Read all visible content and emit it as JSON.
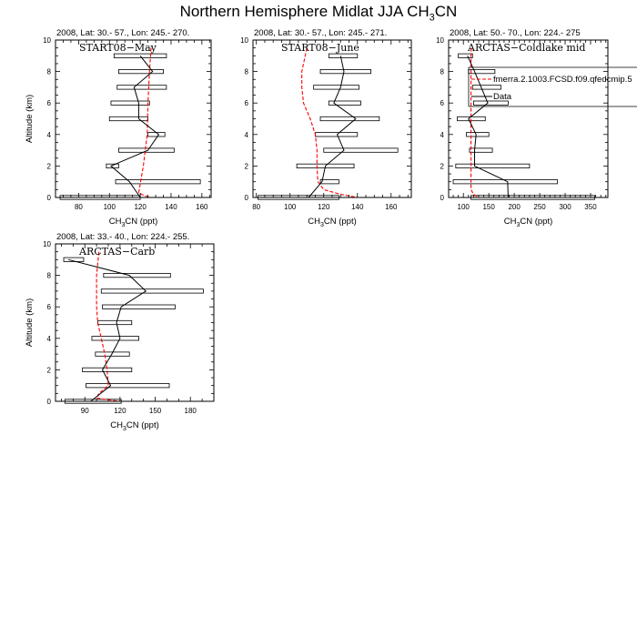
{
  "title": {
    "main": "Northern Hemisphere Midlat JJA CH",
    "sub": "3",
    "tail": "CN"
  },
  "colors": {
    "data": "#000000",
    "model": "#ff0000",
    "box": "#000000"
  },
  "legend": {
    "model_label": "fmerra.2.1003.FCSD.f09.qfedcmip.5",
    "data_label": "Data"
  },
  "chart_data": [
    {
      "type": "line",
      "title": "START08−May",
      "subtitle": "2008, Lat:  30.- 57., Lon: 245.- 270.",
      "xlabel": {
        "a": "CH",
        "sub": "3",
        "b": "CN (ppt)"
      },
      "ylabel": "Altitude (km)",
      "xlim": [
        65,
        166
      ],
      "ylim": [
        0,
        10
      ],
      "xticks": [
        80,
        100,
        120,
        140,
        160
      ],
      "xminor": 5,
      "yticks": [
        0,
        2,
        4,
        6,
        8,
        10
      ],
      "boxes": [
        [
          9,
          103,
          137
        ],
        [
          8,
          106,
          135
        ],
        [
          7,
          105,
          137
        ],
        [
          6,
          101,
          126
        ],
        [
          5,
          100,
          125
        ],
        [
          4,
          125,
          136
        ],
        [
          3,
          106,
          142
        ],
        [
          2,
          98,
          106
        ],
        [
          1,
          104,
          159
        ],
        [
          0,
          68,
          120
        ]
      ],
      "data": [
        [
          9,
          120
        ],
        [
          8,
          128
        ],
        [
          7,
          116
        ],
        [
          6,
          119
        ],
        [
          5,
          119
        ],
        [
          4,
          132
        ],
        [
          3,
          125
        ],
        [
          2,
          101
        ],
        [
          1,
          113
        ],
        [
          0,
          120
        ]
      ],
      "model": [
        [
          9.5,
          127
        ],
        [
          8,
          126
        ],
        [
          6,
          125
        ],
        [
          4,
          124.5
        ],
        [
          2,
          122
        ],
        [
          0.3,
          119
        ],
        [
          0.1,
          123
        ],
        [
          0,
          127
        ]
      ]
    },
    {
      "type": "line",
      "title": "START08−June",
      "subtitle": "2008, Lat:  30.- 57., Lon: 245.- 271.",
      "xlabel": {
        "a": "CH",
        "sub": "3",
        "b": "CN (ppt)"
      },
      "ylabel": "",
      "xlim": [
        78,
        172
      ],
      "ylim": [
        0,
        10
      ],
      "xticks": [
        80,
        100,
        120,
        140,
        160
      ],
      "xminor": 5,
      "yticks": [
        0,
        2,
        4,
        6,
        8,
        10
      ],
      "boxes": [
        [
          9,
          123,
          140
        ],
        [
          8,
          118,
          148
        ],
        [
          7,
          114,
          141
        ],
        [
          6,
          123,
          142
        ],
        [
          5,
          118,
          153
        ],
        [
          4,
          115,
          140
        ],
        [
          3,
          120,
          164
        ],
        [
          2,
          104,
          138
        ],
        [
          1,
          118,
          129
        ],
        [
          0,
          81,
          129
        ]
      ],
      "data": [
        [
          9,
          130
        ],
        [
          8,
          132
        ],
        [
          7,
          130
        ],
        [
          6,
          126
        ],
        [
          5,
          139
        ],
        [
          4,
          128
        ],
        [
          3,
          132
        ],
        [
          2,
          121
        ],
        [
          1,
          119
        ],
        [
          0,
          111
        ]
      ],
      "model": [
        [
          9.5,
          110
        ],
        [
          8,
          107
        ],
        [
          7,
          107
        ],
        [
          6,
          108
        ],
        [
          5,
          112
        ],
        [
          4,
          115
        ],
        [
          3,
          116
        ],
        [
          2,
          116
        ],
        [
          1,
          116.5
        ],
        [
          0.5,
          120
        ],
        [
          0.2,
          130
        ],
        [
          0,
          140
        ]
      ]
    },
    {
      "type": "line",
      "title": "ARCTAS−Coldlake mid",
      "subtitle": "2008, Lat:  50.- 70., Lon: 224.- 275",
      "xlabel": {
        "a": "CH",
        "sub": "3",
        "b": "CN (ppt)"
      },
      "ylabel": "",
      "xlim": [
        71,
        384
      ],
      "ylim": [
        0,
        10
      ],
      "xticks": [
        100,
        150,
        200,
        250,
        300,
        350
      ],
      "xminor": 10,
      "yticks": [
        0,
        2,
        4,
        6,
        8,
        10
      ],
      "boxes": [
        [
          9,
          90,
          118
        ],
        [
          8,
          110,
          162
        ],
        [
          7,
          118,
          174
        ],
        [
          6,
          120,
          188
        ],
        [
          5,
          88,
          143
        ],
        [
          4,
          106,
          150
        ],
        [
          3,
          112,
          157
        ],
        [
          2,
          85,
          230
        ],
        [
          1,
          80,
          285
        ],
        [
          0,
          115,
          358
        ]
      ],
      "data": [
        [
          9,
          108
        ],
        [
          8,
          122
        ],
        [
          7,
          135
        ],
        [
          6,
          148
        ],
        [
          5,
          110
        ],
        [
          4,
          125
        ],
        [
          3,
          122
        ],
        [
          2,
          122
        ],
        [
          1,
          187
        ],
        [
          0,
          188
        ]
      ],
      "model": [
        [
          9.5,
          115
        ],
        [
          8,
          115
        ],
        [
          2,
          115
        ],
        [
          0.5,
          115
        ],
        [
          0.2,
          120
        ],
        [
          0,
          130
        ]
      ],
      "legend": true
    },
    {
      "type": "line",
      "title": "ARCTAS−Carb",
      "subtitle": "2008, Lat:  33.- 40., Lon: 224.- 255.",
      "xlabel": {
        "a": "CH",
        "sub": "3",
        "b": "CN (ppt)"
      },
      "ylabel": "Altitude (km)",
      "xlim": [
        65,
        200
      ],
      "ylim": [
        0,
        10
      ],
      "xticks": [
        90,
        120,
        150,
        180
      ],
      "xminor": 10,
      "yticks": [
        0,
        2,
        4,
        6,
        8,
        10
      ],
      "boxes": [
        [
          9,
          72,
          89
        ],
        [
          8,
          106,
          163
        ],
        [
          7,
          104,
          191
        ],
        [
          6,
          105,
          167
        ],
        [
          5,
          101,
          130
        ],
        [
          4,
          96,
          136
        ],
        [
          3,
          99,
          128
        ],
        [
          2,
          88,
          130
        ],
        [
          1,
          91,
          162
        ],
        [
          0,
          73,
          121
        ]
      ],
      "data": [
        [
          9,
          76
        ],
        [
          8,
          128
        ],
        [
          7,
          142
        ],
        [
          6,
          121
        ],
        [
          5,
          117
        ],
        [
          4,
          120
        ],
        [
          3,
          113
        ],
        [
          2,
          105
        ],
        [
          1,
          112
        ],
        [
          0,
          95
        ]
      ],
      "model": [
        [
          9.5,
          102
        ],
        [
          8,
          100
        ],
        [
          6,
          100
        ],
        [
          5,
          101
        ],
        [
          4,
          104
        ],
        [
          3,
          107
        ],
        [
          2,
          109
        ],
        [
          1,
          110
        ],
        [
          0.5,
          102
        ],
        [
          0.2,
          100
        ],
        [
          0,
          120
        ]
      ]
    }
  ]
}
